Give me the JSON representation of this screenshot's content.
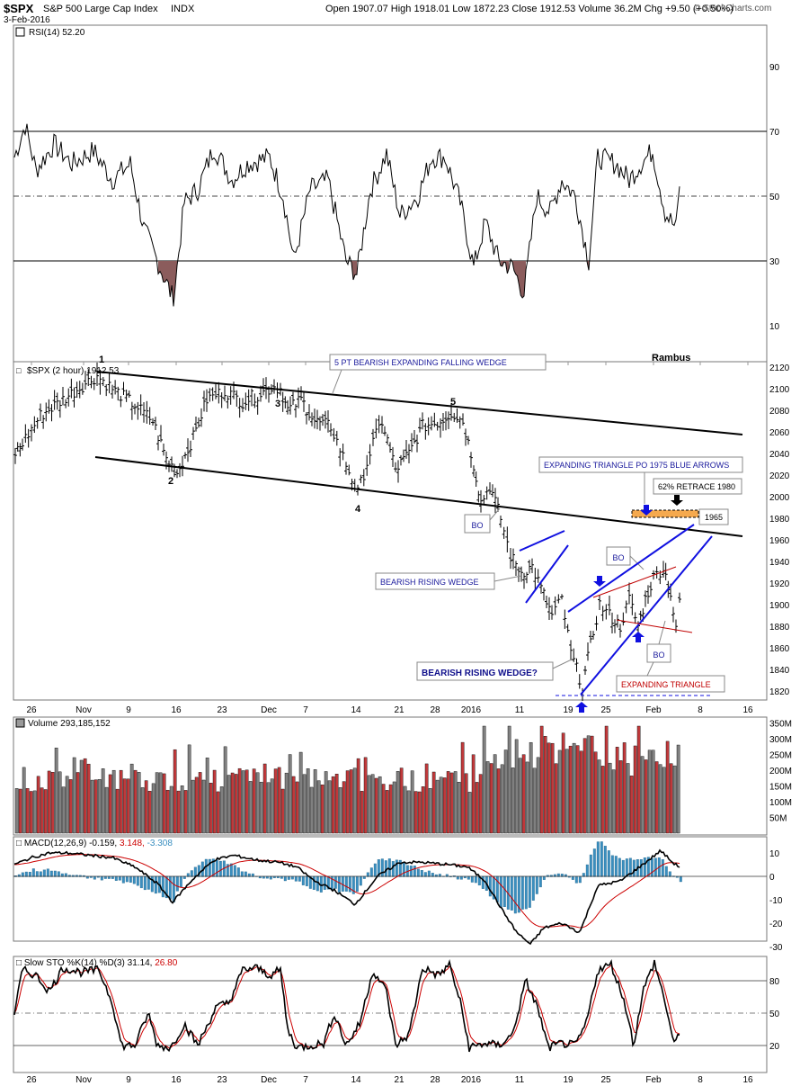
{
  "header": {
    "symbol": "$SPX",
    "name": "S&P 500 Large Cap Index",
    "exchange": "INDX",
    "date": "3-Feb-2016",
    "ohlc": "Open 1907.07  High 1918.01  Low 1872.23  Close 1912.53  Volume 36.2M  Chg +9.50 (+0.50%)",
    "brand": "© StockCharts.com",
    "watermark": "Rambus"
  },
  "panels": {
    "rsi": {
      "label": "RSI(14) 52.20",
      "ticks": [
        "90",
        "70",
        "50",
        "30",
        "10"
      ]
    },
    "price": {
      "label": "$SPX (2 hour) 1912.53",
      "ticks": [
        "2120",
        "2100",
        "2080",
        "2060",
        "2040",
        "2020",
        "2000",
        "1980",
        "1960",
        "1940",
        "1920",
        "1900",
        "1880",
        "1860",
        "1840",
        "1820"
      ]
    },
    "volume": {
      "label": "Volume 293,185,152",
      "ticks": [
        "350M",
        "300M",
        "250M",
        "200M",
        "150M",
        "100M",
        "50M"
      ]
    },
    "macd": {
      "label": "MACD(12,26,9) -0.159,",
      "value2": "3.148,",
      "value3": "-3.308",
      "ticks": [
        "10",
        "0",
        "-10",
        "-20",
        "-30"
      ]
    },
    "sto": {
      "label": "Slow STO %K(14) %D(3) 31.14,",
      "value2": "26.80",
      "ticks": [
        "80",
        "50",
        "20"
      ]
    }
  },
  "x_axis": [
    "26",
    "Nov",
    "9",
    "16",
    "23",
    "Dec",
    "7",
    "14",
    "21",
    "28",
    "2016",
    "11",
    "19",
    "25",
    "Feb",
    "8",
    "16"
  ],
  "annotations": {
    "wave_labels": [
      "1",
      "2",
      "3",
      "4",
      "5"
    ],
    "falling_wedge": "5 PT BEARISH EXPANDING FALLING WEDGE",
    "triangle_po": "EXPANDING TRIANGLE PO 1975 BLUE ARROWS",
    "retrace": "62% RETRACE 1980",
    "level_1965": "1965",
    "bo_1": "BO",
    "bo_2": "BO",
    "bo_3": "BO",
    "rising_wedge": "BEARISH RISING WEDGE",
    "rising_wedge_q": "BEARISH RISING WEDGE?",
    "expanding_triangle": "EXPANDING TRIANGLE"
  },
  "colors": {
    "up_volume": "#808080",
    "down_volume": "#c0393b",
    "rsi_fill": "#8b5c5c",
    "macd_hist": "#3b8fc0",
    "signal_line": "#cc0000",
    "trendline_blue": "#1010e0",
    "annotation_text": "#1a1a9c",
    "triangle_red": "#c00000"
  },
  "chart_data": {
    "type": "line",
    "title": "$SPX S&P 500 Large Cap Index (2 hour)",
    "x_labels": [
      "26",
      "Nov",
      "9",
      "16",
      "23",
      "Dec",
      "7",
      "14",
      "21",
      "28",
      "2016",
      "11",
      "19",
      "25",
      "Feb",
      "8",
      "16"
    ],
    "series": [
      {
        "name": "$SPX",
        "x": [
          "Nov",
          "9",
          "16",
          "23",
          "Dec",
          "7",
          "14",
          "21",
          "28",
          "2016",
          "11",
          "19",
          "25",
          "Feb"
        ],
        "values": [
          2105,
          2080,
          2020,
          2095,
          2100,
          2060,
          2005,
          2050,
          2070,
          2050,
          1930,
          1830,
          1900,
          1915
        ]
      },
      {
        "name": "RSI(14)",
        "values": [
          70,
          55,
          25,
          60,
          62,
          30,
          52,
          45,
          58,
          28,
          25,
          55,
          60,
          52
        ]
      }
    ],
    "ylim": [
      1810,
      2125
    ],
    "levels": [
      {
        "label": "62% RETRACE 1980",
        "value": 1980
      },
      {
        "label": "1965",
        "value": 1965
      }
    ]
  }
}
